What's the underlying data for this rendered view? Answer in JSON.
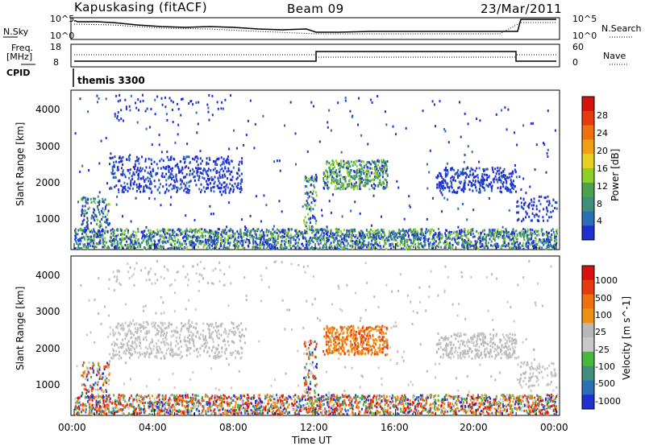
{
  "header": {
    "station": "Kapuskasing (fitACF)",
    "beam": "Beam 09",
    "date": "23/Mar/2011"
  },
  "top_panel": {
    "left_label": "N.Sky",
    "right_label": "N.Search",
    "left_ticks": [
      "10^5",
      "10^0"
    ],
    "right_ticks": [
      "10^5",
      "10^0"
    ]
  },
  "freq_panel": {
    "left_label_1": "Freq.",
    "left_label_2": "[MHz]",
    "right_label": "Nave",
    "left_ticks": [
      "18",
      "8"
    ],
    "right_ticks": [
      "60",
      "0"
    ]
  },
  "cpid": {
    "label": "CPID",
    "value": "themis 3300"
  },
  "colors": {
    "power_scale": [
      "#1f2fd0",
      "#2a6fb8",
      "#3f8f7a",
      "#4aa34a",
      "#8fcf2a",
      "#e8d020",
      "#f0a010",
      "#f07010",
      "#e63a10",
      "#d81010"
    ],
    "velocity_scale": [
      "#1f2fd0",
      "#2a6fb8",
      "#3f8f7a",
      "#46b83a",
      "#c8c8c8",
      "#b8b8b8",
      "#f09010",
      "#f07010",
      "#e63a10",
      "#d81010"
    ]
  },
  "chart_data": [
    {
      "type": "heatmap",
      "panel": "power",
      "ylabel": "Slant Range [km]",
      "y_ticks": [
        "1000",
        "2000",
        "3000",
        "4000"
      ],
      "ylim": [
        200,
        4600
      ],
      "colorbar_label": "Power [dB]",
      "colorbar_ticks": [
        "4",
        "8",
        "12",
        "16",
        "20",
        "24",
        "28"
      ]
    },
    {
      "type": "heatmap",
      "panel": "velocity",
      "ylabel": "Slant Range [km]",
      "y_ticks": [
        "1000",
        "2000",
        "3000",
        "4000"
      ],
      "ylim": [
        200,
        4600
      ],
      "colorbar_label": "Velocity [m s^-1]",
      "colorbar_ticks": [
        "-1000",
        "-500",
        "-100",
        "-25",
        "25",
        "100",
        "500",
        "1000"
      ],
      "xlabel": "Time UT",
      "x_ticks": [
        "00:00",
        "04:00",
        "08:00",
        "12:00",
        "16:00",
        "20:00",
        "00:00"
      ]
    }
  ]
}
